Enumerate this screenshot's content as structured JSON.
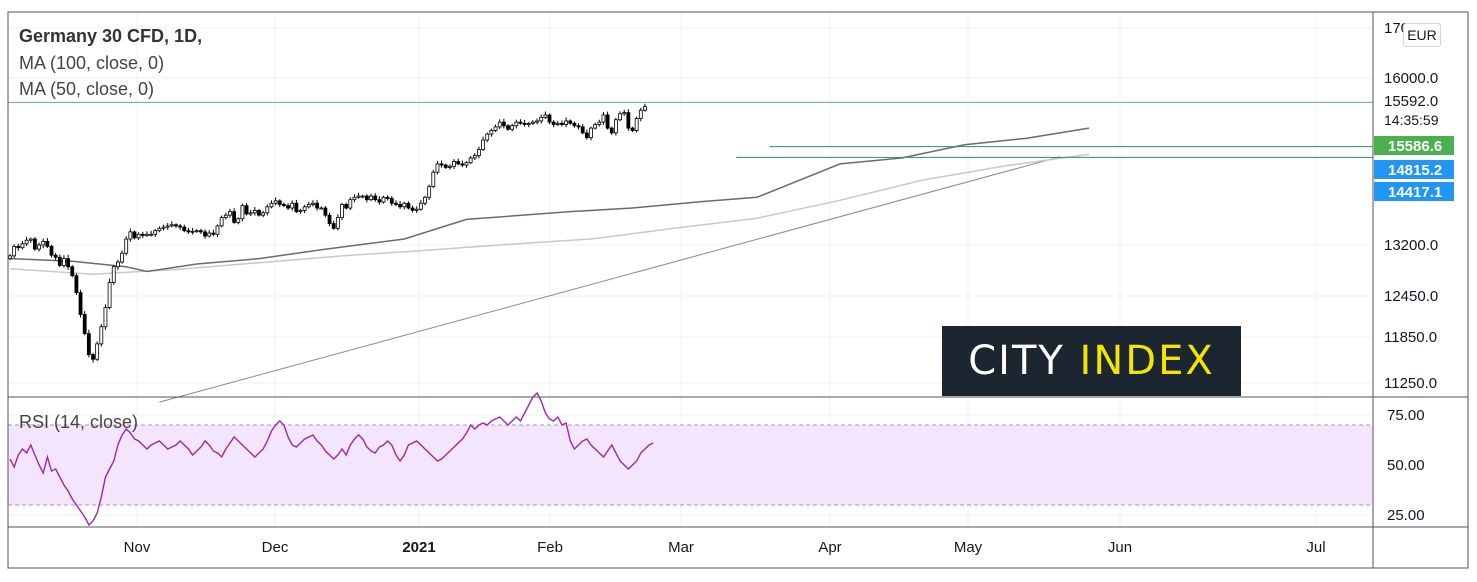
{
  "header": {
    "symbol_title": "Germany 30 CFD, 1D,",
    "ma100_label": "MA (100, close, 0)",
    "ma50_label": "MA (50, close, 0)",
    "currency": "EUR"
  },
  "watermark": {
    "part1": "CITY ",
    "part2": "INDEX"
  },
  "colors": {
    "up": "#ffffff",
    "down": "#000000",
    "candle_border": "#000000",
    "ma50": "#6b6b6b",
    "ma100": "#c8c8c8",
    "hline": "#2e8b7a",
    "rsi_line": "#9c27b0",
    "rsi_band": "#f3e5fc",
    "badge_green": "#4caf50",
    "badge_blue": "#2196f3"
  },
  "chart_data": {
    "type": "candlestick",
    "price_axis": {
      "tick_labels": [
        "17000.0",
        "16000.0",
        "13200.0",
        "12450.0",
        "11850.0",
        "11250.0"
      ],
      "badges": [
        {
          "label": "15592.0",
          "value": 15592,
          "style": "plain"
        },
        {
          "label": "14:35:59",
          "value": null,
          "style": "countdown"
        },
        {
          "label": "15586.6",
          "value": 15586.6,
          "style": "green"
        },
        {
          "label": "14815.2",
          "value": 14815.2,
          "style": "blue"
        },
        {
          "label": "14417.1",
          "value": 14417.1,
          "style": "blue"
        }
      ]
    },
    "time_axis": {
      "labels": [
        "Nov",
        "Dec",
        "2021",
        "Feb",
        "Mar",
        "Apr",
        "May",
        "Jun",
        "Jul"
      ]
    },
    "horizontal_lines": [
      15592,
      14850,
      14670
    ],
    "candles_close": [
      13040,
      13180,
      13160,
      13220,
      13280,
      13300,
      13140,
      13200,
      13260,
      13180,
      13050,
      13020,
      12900,
      13000,
      12880,
      12750,
      12500,
      12180,
      11900,
      11620,
      11560,
      11760,
      12000,
      12280,
      12650,
      12880,
      12950,
      13080,
      13300,
      13420,
      13320,
      13380,
      13360,
      13380,
      13380,
      13440,
      13480,
      13500,
      13520,
      13540,
      13520,
      13500,
      13440,
      13420,
      13430,
      13440,
      13420,
      13350,
      13400,
      13380,
      13520,
      13660,
      13700,
      13760,
      13580,
      13640,
      13860,
      13720,
      13740,
      13780,
      13700,
      13740,
      13840,
      13900,
      13940,
      13880,
      13860,
      13820,
      13900,
      13760,
      13780,
      13840,
      13880,
      13900,
      13820,
      13820,
      13700,
      13560,
      13480,
      13660,
      13880,
      13820,
      13960,
      14000,
      14020,
      14020,
      13960,
      14020,
      13960,
      13920,
      14000,
      13980,
      13900,
      13880,
      13840,
      13900,
      13820,
      13780,
      13800,
      13900,
      14000,
      14180,
      14420,
      14560,
      14540,
      14500,
      14520,
      14600,
      14560,
      14540,
      14580,
      14660,
      14700,
      14800,
      14960,
      15060,
      15120,
      15180,
      15260,
      15200,
      15140,
      15200,
      15260,
      15240,
      15220,
      15240,
      15260,
      15280,
      15340,
      15380,
      15260,
      15220,
      15240,
      15220,
      15280,
      15240,
      15200,
      15180,
      15080,
      15000,
      15160,
      15220,
      15260,
      15380,
      15160,
      15080,
      15300,
      15400,
      15420,
      15160,
      15120,
      15320,
      15460,
      15520
    ],
    "ma50": [
      [
        0,
        13000
      ],
      [
        15,
        12960
      ],
      [
        28,
        12880
      ],
      [
        33,
        12810
      ],
      [
        45,
        12920
      ],
      [
        60,
        13000
      ],
      [
        75,
        13130
      ],
      [
        95,
        13300
      ],
      [
        110,
        13630
      ],
      [
        135,
        13760
      ],
      [
        150,
        13820
      ],
      [
        167,
        13930
      ],
      [
        180,
        14000
      ],
      [
        200,
        14560
      ],
      [
        215,
        14660
      ],
      [
        230,
        14880
      ],
      [
        245,
        14990
      ],
      [
        260,
        15160
      ]
    ],
    "ma100": [
      [
        0,
        12850
      ],
      [
        20,
        12770
      ],
      [
        40,
        12840
      ],
      [
        60,
        12940
      ],
      [
        80,
        13040
      ],
      [
        100,
        13120
      ],
      [
        120,
        13210
      ],
      [
        140,
        13300
      ],
      [
        160,
        13480
      ],
      [
        180,
        13650
      ],
      [
        200,
        13950
      ],
      [
        220,
        14290
      ],
      [
        240,
        14530
      ],
      [
        260,
        14720
      ]
    ],
    "trendline": [
      [
        36,
        11000
      ],
      [
        253,
        14680
      ]
    ],
    "rsi": {
      "label": "RSI (14, close)",
      "tick_labels": [
        "75.00",
        "50.00",
        "25.00"
      ],
      "band": [
        30,
        70
      ],
      "values": [
        53,
        49,
        55,
        58,
        56,
        60,
        55,
        50,
        46,
        54,
        47,
        48,
        44,
        40,
        37,
        33,
        30,
        27,
        24,
        20,
        22,
        26,
        34,
        44,
        48,
        52,
        60,
        65,
        68,
        66,
        63,
        62,
        60,
        58,
        60,
        61,
        62,
        60,
        58,
        59,
        60,
        62,
        60,
        58,
        55,
        57,
        59,
        62,
        60,
        57,
        56,
        54,
        58,
        61,
        64,
        62,
        60,
        58,
        56,
        54,
        56,
        58,
        62,
        67,
        70,
        72,
        70,
        64,
        60,
        59,
        61,
        63,
        64,
        65,
        62,
        60,
        57,
        55,
        53,
        55,
        58,
        55,
        60,
        63,
        65,
        63,
        59,
        57,
        56,
        59,
        60,
        62,
        60,
        55,
        52,
        55,
        60,
        61,
        62,
        60,
        58,
        56,
        54,
        52,
        53,
        55,
        57,
        59,
        61,
        63,
        66,
        70,
        68,
        70,
        71,
        70,
        72,
        73,
        74,
        72,
        70,
        72,
        74,
        72,
        76,
        80,
        84,
        86,
        82,
        76,
        73,
        72,
        74,
        70,
        71,
        62,
        58,
        60,
        62,
        63,
        60,
        58,
        56,
        54,
        57,
        60,
        56,
        52,
        50,
        48,
        50,
        52,
        56,
        58,
        60,
        61
      ]
    }
  }
}
